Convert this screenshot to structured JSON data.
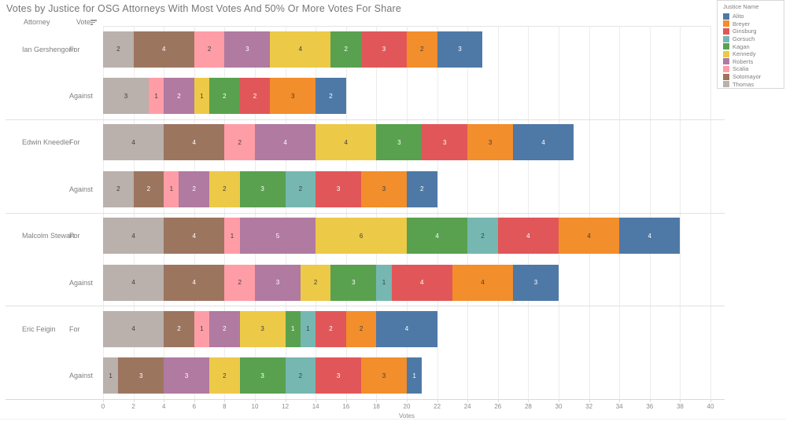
{
  "header": {
    "title": "Votes by Justice for OSG Attorneys With Most Votes And 50% Or More Votes For Share",
    "attorney_col": "Attorney",
    "vote_col": "Vote"
  },
  "legend": {
    "title": "Justice Name",
    "items": [
      {
        "label": "Alito",
        "color": "#4e79a7"
      },
      {
        "label": "Breyer",
        "color": "#f28e2b"
      },
      {
        "label": "Ginsburg",
        "color": "#e15759"
      },
      {
        "label": "Gorsuch",
        "color": "#76b7b2"
      },
      {
        "label": "Kagan",
        "color": "#59a14f"
      },
      {
        "label": "Kennedy",
        "color": "#edc948"
      },
      {
        "label": "Roberts",
        "color": "#b07aa1"
      },
      {
        "label": "Scalia",
        "color": "#ff9da7"
      },
      {
        "label": "Sotomayor",
        "color": "#9c755f"
      },
      {
        "label": "Thomas",
        "color": "#bab0ac"
      }
    ]
  },
  "chart_data": {
    "type": "bar",
    "orientation": "horizontal",
    "stacked": true,
    "title": "Votes by Justice for OSG Attorneys With Most Votes And 50% Or More Votes For Share",
    "xlabel": "Votes",
    "xlim": [
      0,
      40
    ],
    "xticks": [
      0,
      2,
      4,
      6,
      8,
      10,
      12,
      14,
      16,
      18,
      20,
      22,
      24,
      26,
      28,
      30,
      32,
      34,
      36,
      38,
      40
    ],
    "grid": true,
    "legend_position": "top-right",
    "stack_order_left_to_right": [
      "Thomas",
      "Sotomayor",
      "Scalia",
      "Roberts",
      "Kennedy",
      "Kagan",
      "Gorsuch",
      "Ginsburg",
      "Breyer",
      "Alito"
    ],
    "justice_colors": {
      "Alito": "#4e79a7",
      "Breyer": "#f28e2b",
      "Ginsburg": "#e15759",
      "Gorsuch": "#76b7b2",
      "Kagan": "#59a14f",
      "Kennedy": "#edc948",
      "Roberts": "#b07aa1",
      "Scalia": "#ff9da7",
      "Sotomayor": "#9c755f",
      "Thomas": "#bab0ac"
    },
    "label_text_colors": {
      "Alito": "#ffffff",
      "Breyer": "#3d3d3d",
      "Ginsburg": "#ffffff",
      "Gorsuch": "#3d3d3d",
      "Kagan": "#ffffff",
      "Kennedy": "#3d3d3d",
      "Roberts": "#ffffff",
      "Scalia": "#3d3d3d",
      "Sotomayor": "#ffffff",
      "Thomas": "#3d3d3d"
    },
    "rows": [
      {
        "attorney": "Ian Gershengorn",
        "vote": "For",
        "total": 25,
        "segments": [
          {
            "justice": "Thomas",
            "value": 2
          },
          {
            "justice": "Sotomayor",
            "value": 4
          },
          {
            "justice": "Scalia",
            "value": 2
          },
          {
            "justice": "Roberts",
            "value": 3
          },
          {
            "justice": "Kennedy",
            "value": 4
          },
          {
            "justice": "Kagan",
            "value": 2
          },
          {
            "justice": "Ginsburg",
            "value": 3
          },
          {
            "justice": "Breyer",
            "value": 2
          },
          {
            "justice": "Alito",
            "value": 3
          }
        ]
      },
      {
        "attorney": "Ian Gershengorn",
        "vote": "Against",
        "total": 16,
        "segments": [
          {
            "justice": "Thomas",
            "value": 3
          },
          {
            "justice": "Scalia",
            "value": 1
          },
          {
            "justice": "Roberts",
            "value": 2
          },
          {
            "justice": "Kennedy",
            "value": 1
          },
          {
            "justice": "Kagan",
            "value": 2
          },
          {
            "justice": "Ginsburg",
            "value": 2
          },
          {
            "justice": "Breyer",
            "value": 3
          },
          {
            "justice": "Alito",
            "value": 2
          }
        ]
      },
      {
        "attorney": "Edwin Kneedler",
        "vote": "For",
        "total": 31,
        "segments": [
          {
            "justice": "Thomas",
            "value": 4
          },
          {
            "justice": "Sotomayor",
            "value": 4
          },
          {
            "justice": "Scalia",
            "value": 2
          },
          {
            "justice": "Roberts",
            "value": 4
          },
          {
            "justice": "Kennedy",
            "value": 4
          },
          {
            "justice": "Kagan",
            "value": 3
          },
          {
            "justice": "Ginsburg",
            "value": 3
          },
          {
            "justice": "Breyer",
            "value": 3
          },
          {
            "justice": "Alito",
            "value": 4
          }
        ]
      },
      {
        "attorney": "Edwin Kneedler",
        "vote": "Against",
        "total": 22,
        "segments": [
          {
            "justice": "Thomas",
            "value": 2
          },
          {
            "justice": "Sotomayor",
            "value": 2
          },
          {
            "justice": "Scalia",
            "value": 1
          },
          {
            "justice": "Roberts",
            "value": 2
          },
          {
            "justice": "Kennedy",
            "value": 2
          },
          {
            "justice": "Kagan",
            "value": 3
          },
          {
            "justice": "Gorsuch",
            "value": 2
          },
          {
            "justice": "Ginsburg",
            "value": 3
          },
          {
            "justice": "Breyer",
            "value": 3
          },
          {
            "justice": "Alito",
            "value": 2
          }
        ]
      },
      {
        "attorney": "Malcolm Stewart",
        "vote": "For",
        "total": 38,
        "segments": [
          {
            "justice": "Thomas",
            "value": 4
          },
          {
            "justice": "Sotomayor",
            "value": 4
          },
          {
            "justice": "Scalia",
            "value": 1
          },
          {
            "justice": "Roberts",
            "value": 5
          },
          {
            "justice": "Kennedy",
            "value": 6
          },
          {
            "justice": "Kagan",
            "value": 4
          },
          {
            "justice": "Gorsuch",
            "value": 2
          },
          {
            "justice": "Ginsburg",
            "value": 4
          },
          {
            "justice": "Breyer",
            "value": 4
          },
          {
            "justice": "Alito",
            "value": 4
          }
        ]
      },
      {
        "attorney": "Malcolm Stewart",
        "vote": "Against",
        "total": 30,
        "segments": [
          {
            "justice": "Thomas",
            "value": 4
          },
          {
            "justice": "Sotomayor",
            "value": 4
          },
          {
            "justice": "Scalia",
            "value": 2
          },
          {
            "justice": "Roberts",
            "value": 3
          },
          {
            "justice": "Kennedy",
            "value": 2
          },
          {
            "justice": "Kagan",
            "value": 3
          },
          {
            "justice": "Gorsuch",
            "value": 1
          },
          {
            "justice": "Ginsburg",
            "value": 4
          },
          {
            "justice": "Breyer",
            "value": 4
          },
          {
            "justice": "Alito",
            "value": 3
          }
        ]
      },
      {
        "attorney": "Eric Feigin",
        "vote": "For",
        "total": 22,
        "segments": [
          {
            "justice": "Thomas",
            "value": 4
          },
          {
            "justice": "Sotomayor",
            "value": 2
          },
          {
            "justice": "Scalia",
            "value": 1
          },
          {
            "justice": "Roberts",
            "value": 2
          },
          {
            "justice": "Kennedy",
            "value": 3
          },
          {
            "justice": "Kagan",
            "value": 1
          },
          {
            "justice": "Gorsuch",
            "value": 1
          },
          {
            "justice": "Ginsburg",
            "value": 2
          },
          {
            "justice": "Breyer",
            "value": 2
          },
          {
            "justice": "Alito",
            "value": 4
          }
        ]
      },
      {
        "attorney": "Eric Feigin",
        "vote": "Against",
        "total": 21,
        "segments": [
          {
            "justice": "Thomas",
            "value": 1
          },
          {
            "justice": "Sotomayor",
            "value": 3
          },
          {
            "justice": "Roberts",
            "value": 3
          },
          {
            "justice": "Kennedy",
            "value": 2
          },
          {
            "justice": "Kagan",
            "value": 3
          },
          {
            "justice": "Gorsuch",
            "value": 2
          },
          {
            "justice": "Ginsburg",
            "value": 3
          },
          {
            "justice": "Breyer",
            "value": 3
          },
          {
            "justice": "Alito",
            "value": 1
          }
        ]
      }
    ]
  }
}
